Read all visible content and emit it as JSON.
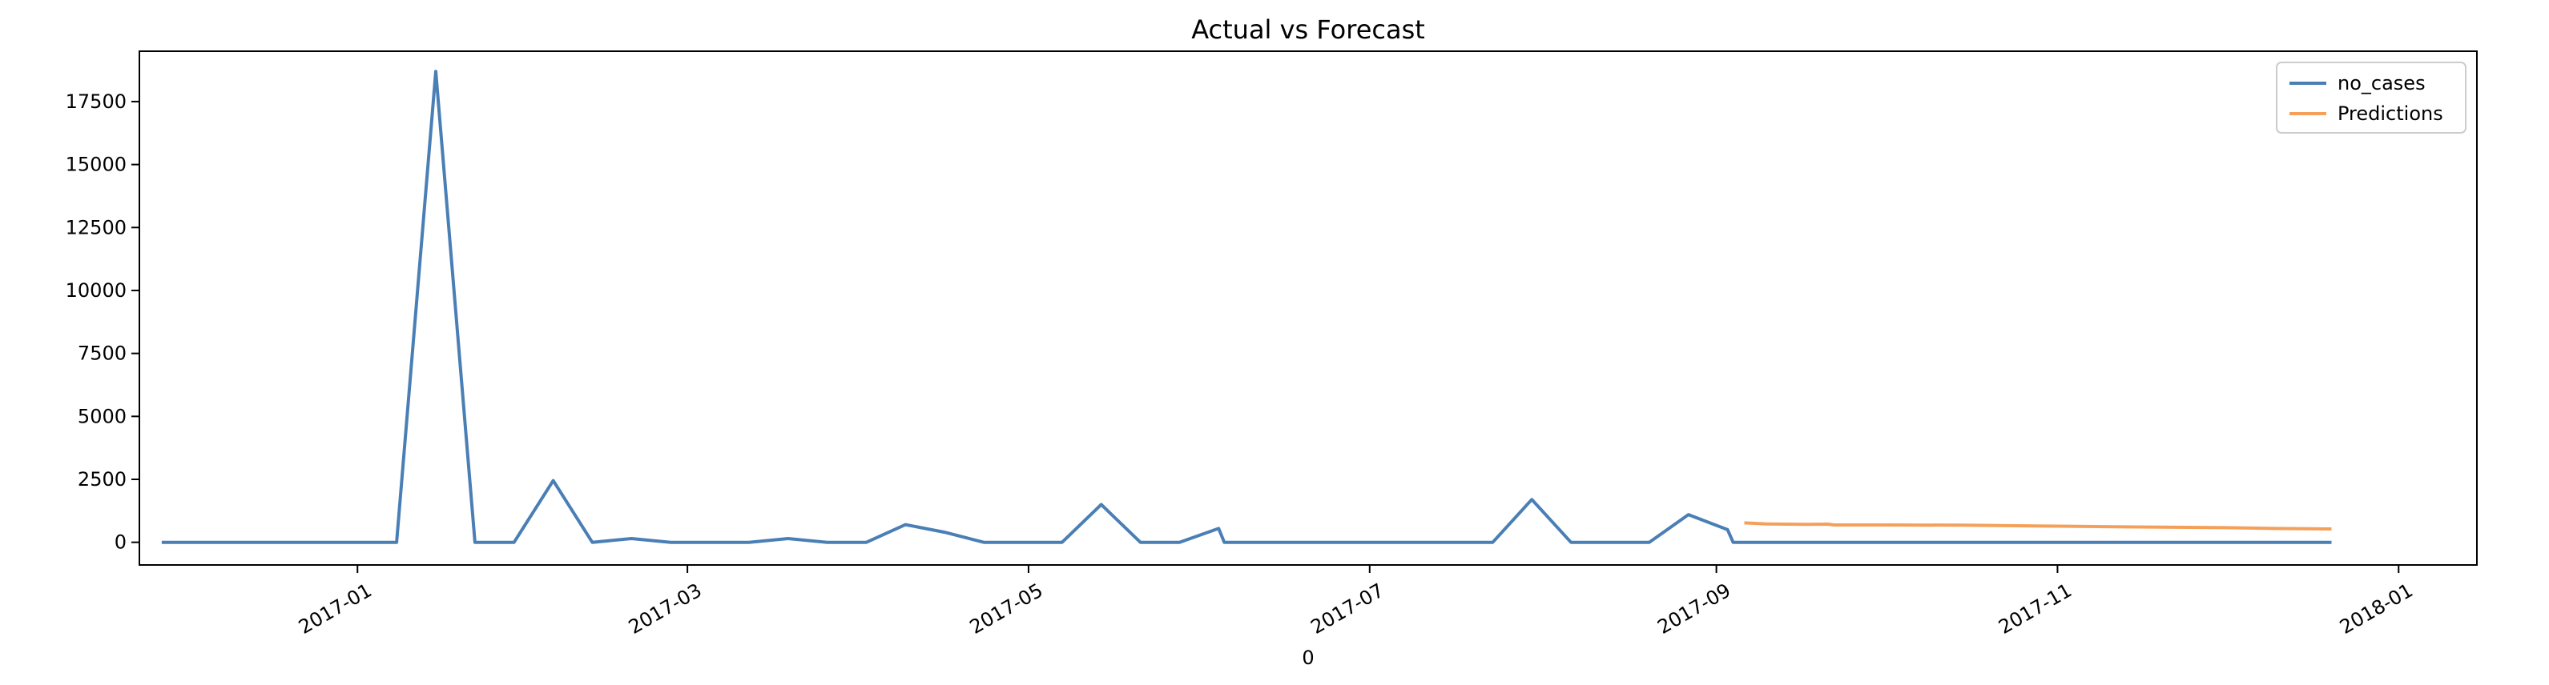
{
  "chart_data": {
    "type": "line",
    "title": "Actual vs Forecast",
    "xlabel": "0",
    "ylabel": "",
    "xlim": [
      "2016-11-23",
      "2018-01-15"
    ],
    "ylim": [
      -900,
      19500
    ],
    "x_ticks": [
      "2017-01-01",
      "2017-03-01",
      "2017-05-01",
      "2017-07-01",
      "2017-09-01",
      "2017-11-01",
      "2018-01-01"
    ],
    "x_tick_labels": [
      "2017-01",
      "2017-03",
      "2017-05",
      "2017-07",
      "2017-09",
      "2017-11",
      "2018-01"
    ],
    "y_ticks": [
      0,
      2500,
      5000,
      7500,
      10000,
      12500,
      15000,
      17500
    ],
    "y_tick_labels": [
      "0",
      "2500",
      "5000",
      "7500",
      "10000",
      "12500",
      "15000",
      "17500"
    ],
    "grid": false,
    "legend_position": "top-right",
    "series": [
      {
        "name": "no_cases",
        "color": "#4a7fb5",
        "x": [
          "2016-11-27",
          "2017-01-08",
          "2017-01-15",
          "2017-01-22",
          "2017-01-29",
          "2017-02-05",
          "2017-02-12",
          "2017-02-19",
          "2017-02-26",
          "2017-03-05",
          "2017-03-12",
          "2017-03-19",
          "2017-03-26",
          "2017-04-02",
          "2017-04-09",
          "2017-04-16",
          "2017-04-23",
          "2017-04-30",
          "2017-05-07",
          "2017-05-14",
          "2017-05-21",
          "2017-05-28",
          "2017-06-04",
          "2017-06-05",
          "2017-07-01",
          "2017-07-23",
          "2017-07-30",
          "2017-08-06",
          "2017-08-20",
          "2017-08-27",
          "2017-09-03",
          "2017-09-04",
          "2017-12-20"
        ],
        "y": [
          0,
          0,
          18700,
          0,
          0,
          2450,
          0,
          150,
          0,
          0,
          0,
          150,
          0,
          0,
          700,
          400,
          0,
          0,
          0,
          1500,
          0,
          0,
          550,
          0,
          0,
          0,
          1700,
          0,
          0,
          1100,
          500,
          0,
          0
        ]
      },
      {
        "name": "Predictions",
        "color": "#f5a05a",
        "x": [
          "2017-09-06",
          "2017-09-10",
          "2017-09-17",
          "2017-09-21",
          "2017-09-22",
          "2017-10-01",
          "2017-10-15",
          "2017-11-01",
          "2017-11-15",
          "2017-12-01",
          "2017-12-10",
          "2017-12-20"
        ],
        "y": [
          770,
          730,
          710,
          720,
          690,
          690,
          680,
          640,
          610,
          580,
          550,
          530
        ]
      }
    ]
  }
}
